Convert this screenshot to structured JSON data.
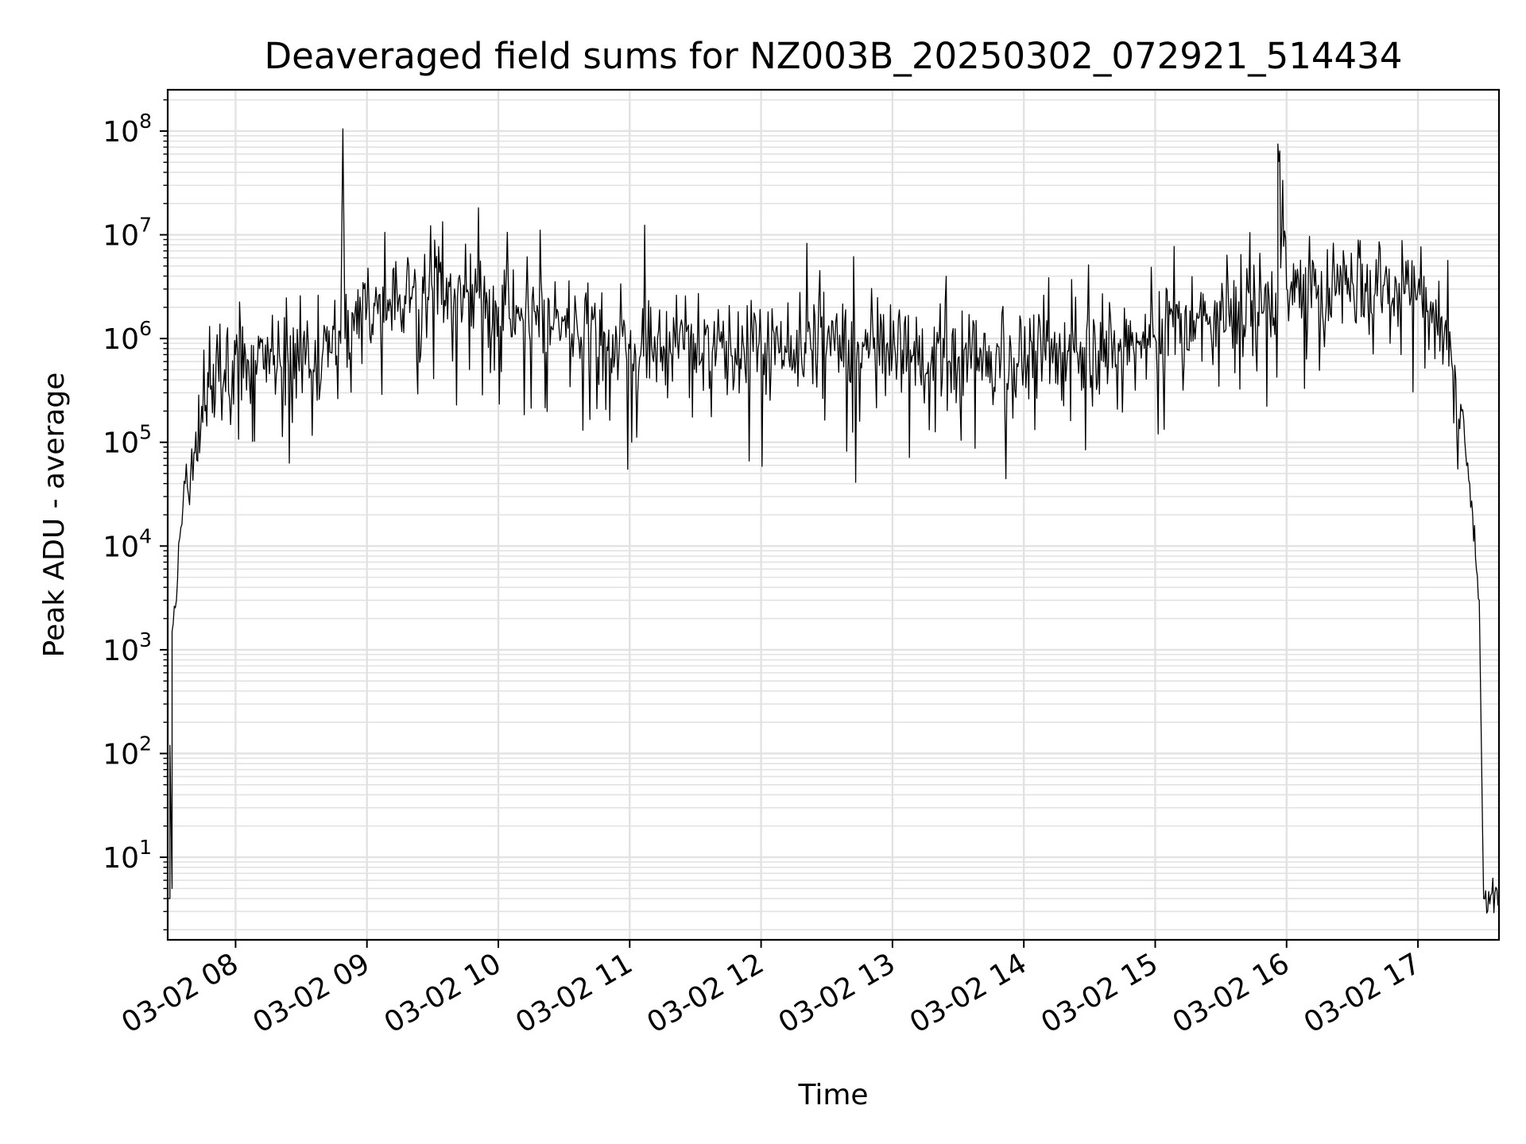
{
  "chart_data": {
    "type": "line",
    "title": "Deaveraged field sums for NZ003B_20250302_072921_514434",
    "xlabel": "Time",
    "ylabel": "Peak ADU - average",
    "x_axis": {
      "kind": "datetime",
      "range": [
        "03-02 07:29",
        "03-02 17:37"
      ],
      "tick_labels": [
        "03-02 08",
        "03-02 09",
        "03-02 10",
        "03-02 11",
        "03-02 12",
        "03-02 13",
        "03-02 14",
        "03-02 15",
        "03-02 16",
        "03-02 17"
      ],
      "tick_label_rotation_deg": 30
    },
    "y_axis": {
      "scale": "log",
      "range": [
        1.6,
        250000000
      ],
      "tick_labels": [
        {
          "base": "10",
          "exp": "1"
        },
        {
          "base": "10",
          "exp": "2"
        },
        {
          "base": "10",
          "exp": "3"
        },
        {
          "base": "10",
          "exp": "4"
        },
        {
          "base": "10",
          "exp": "5"
        },
        {
          "base": "10",
          "exp": "6"
        },
        {
          "base": "10",
          "exp": "7"
        },
        {
          "base": "10",
          "exp": "8"
        }
      ]
    },
    "grid": true,
    "legend": "none",
    "series": [
      {
        "color": "#000000",
        "points": [
          [
            "03-02 07:29",
            4
          ],
          [
            "03-02 07:30",
            4
          ],
          [
            "03-02 07:30",
            120
          ],
          [
            "03-02 07:31",
            5
          ],
          [
            "03-02 07:31",
            1500
          ],
          [
            "03-02 07:33",
            3000
          ],
          [
            "03-02 07:35",
            15000
          ],
          [
            "03-02 07:37",
            40000
          ],
          [
            "03-02 07:39",
            25000
          ],
          [
            "03-02 07:41",
            80000
          ],
          [
            "03-02 07:44",
            120000
          ],
          [
            "03-02 07:46",
            200000
          ],
          [
            "03-02 07:49",
            350000
          ],
          [
            "03-02 07:52",
            600000
          ],
          [
            "03-02 07:55",
            500000
          ],
          [
            "03-02 08:00",
            700000
          ],
          [
            "03-02 08:10",
            600000
          ],
          [
            "03-02 08:20",
            700000
          ],
          [
            "03-02 08:30",
            600000
          ],
          [
            "03-02 08:40",
            800000
          ],
          [
            "03-02 08:48",
            900000
          ],
          [
            "03-02 08:49",
            105000000
          ],
          [
            "03-02 08:50",
            1000000
          ],
          [
            "03-02 09:00",
            2000000
          ],
          [
            "03-02 09:20",
            2500000
          ],
          [
            "03-02 09:40",
            3000000
          ],
          [
            "03-02 10:00",
            2000000
          ],
          [
            "03-02 10:30",
            1500000
          ],
          [
            "03-02 11:00",
            800000
          ],
          [
            "03-02 11:30",
            900000
          ],
          [
            "03-02 12:00",
            900000
          ],
          [
            "03-02 12:30",
            800000
          ],
          [
            "03-02 13:00",
            700000
          ],
          [
            "03-02 13:30",
            650000
          ],
          [
            "03-02 14:00",
            600000
          ],
          [
            "03-02 14:30",
            700000
          ],
          [
            "03-02 15:00",
            1000000
          ],
          [
            "03-02 15:30",
            1500000
          ],
          [
            "03-02 15:56",
            2500000
          ],
          [
            "03-02 15:56",
            75000000
          ],
          [
            "03-02 16:00",
            3000000
          ],
          [
            "03-02 16:30",
            3500000
          ],
          [
            "03-02 17:00",
            3000000
          ],
          [
            "03-02 17:15",
            800000
          ],
          [
            "03-02 17:20",
            200000
          ],
          [
            "03-02 17:25",
            20000
          ],
          [
            "03-02 17:28",
            3000
          ],
          [
            "03-02 17:30",
            4
          ],
          [
            "03-02 17:37",
            4
          ]
        ]
      }
    ]
  }
}
